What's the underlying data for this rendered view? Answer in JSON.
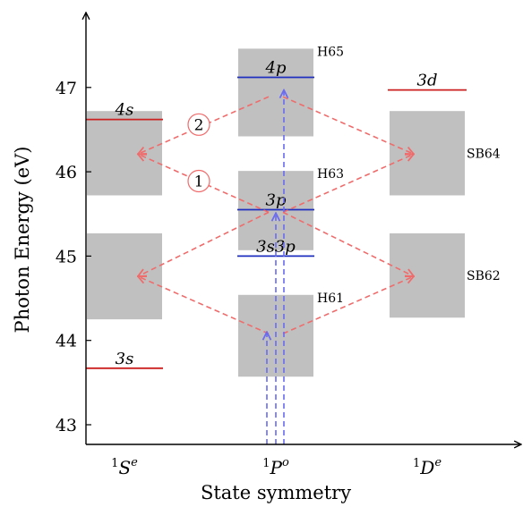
{
  "axes": {
    "ylabel": "Photon Energy (eV)",
    "xlabel": "State symmetry",
    "yticks": [
      "43",
      "44",
      "45",
      "46",
      "47"
    ],
    "columns": [
      {
        "sup": "1",
        "base": "S",
        "exp": "e"
      },
      {
        "sup": "1",
        "base": "P",
        "exp": "o"
      },
      {
        "sup": "1",
        "base": "D",
        "exp": "e"
      }
    ]
  },
  "ylim": [
    42.7,
    48.0
  ],
  "bands": [
    {
      "col": 0,
      "range": [
        44.25,
        45.27
      ]
    },
    {
      "col": 0,
      "range": [
        45.72,
        46.72
      ]
    },
    {
      "col": 1,
      "range": [
        43.57,
        44.54
      ],
      "label": "H61"
    },
    {
      "col": 1,
      "range": [
        45.07,
        46.01
      ],
      "label": "H63"
    },
    {
      "col": 1,
      "range": [
        46.42,
        47.46
      ],
      "label": "H65"
    },
    {
      "col": 2,
      "range": [
        44.27,
        45.27
      ],
      "label": "SB62"
    },
    {
      "col": 2,
      "range": [
        45.72,
        46.72
      ],
      "label": "SB64"
    }
  ],
  "levels": [
    {
      "name": "3s",
      "col": 0,
      "energy": 43.67,
      "color": "#cc1f1f"
    },
    {
      "name": "4s",
      "col": 0,
      "energy": 46.62,
      "color": "#cc1f1f"
    },
    {
      "name": "3s3p",
      "col": 1,
      "energy": 45.0,
      "color": "#1f2fbf"
    },
    {
      "name": "3p",
      "col": 1,
      "energy": 45.55,
      "color": "#1f2fbf"
    },
    {
      "name": "4p",
      "col": 1,
      "energy": 47.12,
      "color": "#1f2fbf"
    },
    {
      "name": "3d",
      "col": 2,
      "energy": 46.97,
      "color": "#cc1f1f"
    }
  ],
  "pathway_labels": [
    {
      "text": "1",
      "col": 0.72,
      "energy": 45.89
    },
    {
      "text": "2",
      "col": 0.72,
      "energy": 46.56
    }
  ],
  "colors": {
    "band": "#c0c0c0",
    "red_arrow": "#f06b6b",
    "blue_arrow": "#6b6bf0"
  }
}
